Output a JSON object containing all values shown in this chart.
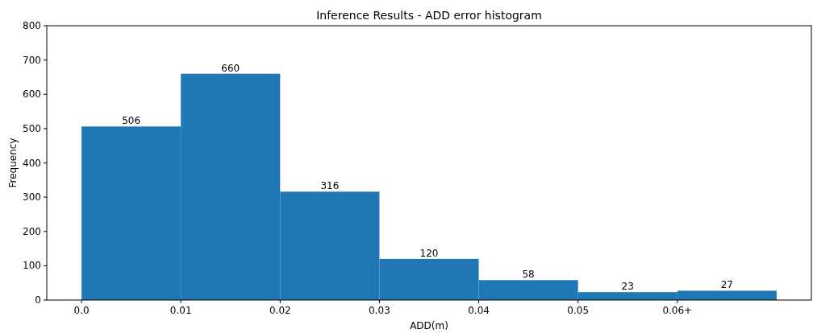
{
  "chart_data": {
    "type": "histogram",
    "title": "Inference Results - ADD error histogram",
    "xlabel": "ADD(m)",
    "ylabel": "Frequency",
    "bins": [
      0,
      0.01,
      0.02,
      0.03,
      0.04,
      0.05,
      0.06,
      0.07
    ],
    "values": [
      506,
      660,
      316,
      120,
      58,
      23,
      27
    ],
    "color": "#1f77b4",
    "data_labels": true,
    "xlim": [
      -0.0035,
      0.0735
    ],
    "xticks": [
      {
        "value": 0,
        "label": "0.0"
      },
      0.01,
      0.02,
      0.03,
      0.04,
      0.05,
      {
        "value": 0.06,
        "label": "0.06+"
      }
    ],
    "ylim": [
      0,
      800
    ],
    "yticks": [
      0,
      100,
      200,
      300,
      400,
      500,
      600,
      700,
      800
    ],
    "grid": false
  }
}
